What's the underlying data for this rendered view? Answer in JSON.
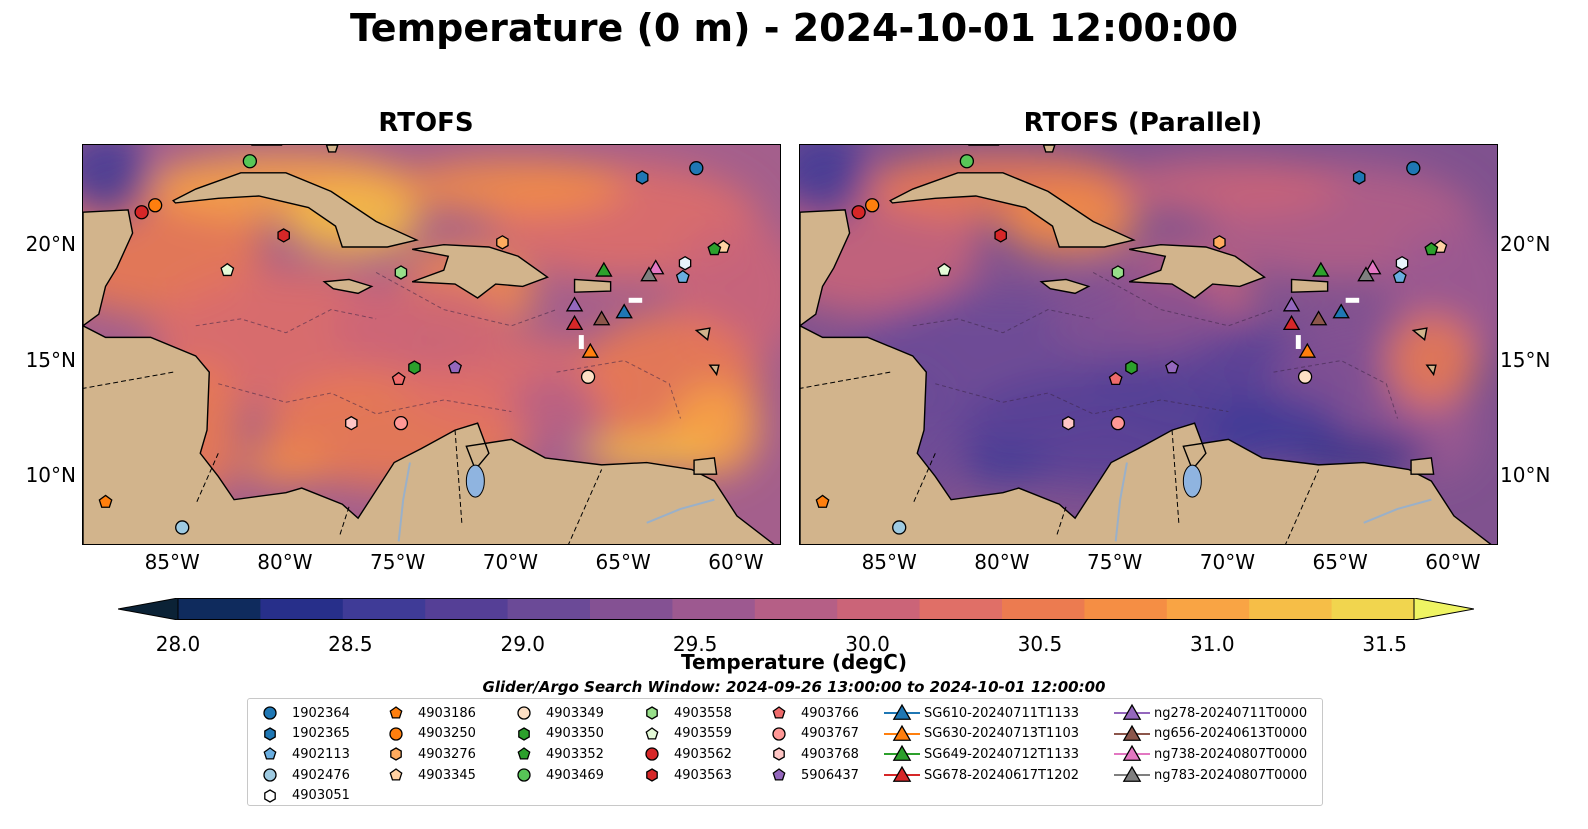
{
  "title": "Temperature (0 m) - 2024-10-01 12:00:00",
  "panels": [
    {
      "title": "RTOFS"
    },
    {
      "title": "RTOFS (Parallel)"
    }
  ],
  "map_axes": {
    "lat_labels": [
      "20°N",
      "15°N",
      "10°N"
    ],
    "lon_labels": [
      "85°W",
      "80°W",
      "75°W",
      "70°W",
      "65°W",
      "60°W"
    ]
  },
  "colorbar": {
    "label": "Temperature (degC)",
    "ticks": [
      "28.0",
      "28.5",
      "29.0",
      "29.5",
      "30.0",
      "30.5",
      "31.0",
      "31.5"
    ],
    "colors": [
      "#0b2236",
      "#0f2b5d",
      "#272f8a",
      "#3f3b97",
      "#553f96",
      "#6b4a97",
      "#845193",
      "#9d5990",
      "#b55f86",
      "#cb6478",
      "#e06f67",
      "#ec7b50",
      "#f58e44",
      "#f9a444",
      "#f6be47",
      "#f1d54e",
      "#eff463"
    ]
  },
  "legend": {
    "title": "Glider/Argo Search Window: 2024-09-26 13:00:00 to 2024-10-01 12:00:00",
    "columns": [
      [
        {
          "label": "1902364",
          "marker": "circle",
          "color": "#1f77b4"
        },
        {
          "label": "1902365",
          "marker": "hexagon",
          "color": "#1f77b4"
        },
        {
          "label": "4902113",
          "marker": "pentagon",
          "color": "#6aaee0"
        },
        {
          "label": "4902476",
          "marker": "circle",
          "color": "#9ecae1"
        },
        {
          "label": "4903051",
          "marker": "hexagon",
          "color": "#ffffff"
        }
      ],
      [
        {
          "label": "4903186",
          "marker": "pentagon",
          "color": "#ff7f0e"
        },
        {
          "label": "4903250",
          "marker": "circle",
          "color": "#ff7f0e"
        },
        {
          "label": "4903276",
          "marker": "hexagon",
          "color": "#ffab5e"
        },
        {
          "label": "4903345",
          "marker": "pentagon",
          "color": "#ffd1a3"
        }
      ],
      [
        {
          "label": "4903349",
          "marker": "circle",
          "color": "#fde0c5"
        },
        {
          "label": "4903350",
          "marker": "hexagon",
          "color": "#2ca02c"
        },
        {
          "label": "4903352",
          "marker": "pentagon",
          "color": "#2ca02c"
        },
        {
          "label": "4903469",
          "marker": "circle",
          "color": "#57c657"
        }
      ],
      [
        {
          "label": "4903558",
          "marker": "hexagon",
          "color": "#98df8a"
        },
        {
          "label": "4903559",
          "marker": "pentagon",
          "color": "#e5fbd8"
        },
        {
          "label": "4903562",
          "marker": "circle",
          "color": "#d62728"
        },
        {
          "label": "4903563",
          "marker": "hexagon",
          "color": "#d62728"
        }
      ],
      [
        {
          "label": "4903766",
          "marker": "pentagon",
          "color": "#ef6b6b"
        },
        {
          "label": "4903767",
          "marker": "circle",
          "color": "#ff9896"
        },
        {
          "label": "4903768",
          "marker": "hexagon",
          "color": "#ffc6c5"
        },
        {
          "label": "5906437",
          "marker": "pentagon",
          "color": "#9467bd"
        }
      ],
      [
        {
          "label": "SG610-20240711T1133",
          "marker": "triangle-line",
          "color": "#1f77b4"
        },
        {
          "label": "SG630-20240713T1103",
          "marker": "triangle-line",
          "color": "#ff7f0e"
        },
        {
          "label": "SG649-20240712T1133",
          "marker": "triangle-line",
          "color": "#2ca02c"
        },
        {
          "label": "SG678-20240617T1202",
          "marker": "triangle-line",
          "color": "#d62728"
        }
      ],
      [
        {
          "label": "ng278-20240711T0000",
          "marker": "triangle-line",
          "color": "#9467bd"
        },
        {
          "label": "ng656-20240613T0000",
          "marker": "triangle-line",
          "color": "#8c564b"
        },
        {
          "label": "ng738-20240807T0000",
          "marker": "triangle-line",
          "color": "#e377c2"
        },
        {
          "label": "ng783-20240807T0000",
          "marker": "triangle-line",
          "color": "#7f7f7f"
        }
      ]
    ]
  },
  "markers": [
    {
      "lon": -61.8,
      "lat": 23.3,
      "marker": "circle",
      "color": "#1f77b4"
    },
    {
      "lon": -64.2,
      "lat": 22.9,
      "marker": "hexagon",
      "color": "#1f77b4"
    },
    {
      "lon": -88.0,
      "lat": 8.9,
      "marker": "pentagon",
      "color": "#ff7f0e"
    },
    {
      "lon": -85.8,
      "lat": 21.7,
      "marker": "circle",
      "color": "#ff7f0e"
    },
    {
      "lon": -70.4,
      "lat": 20.1,
      "marker": "hexagon",
      "color": "#ffab5e"
    },
    {
      "lon": -60.6,
      "lat": 19.9,
      "marker": "pentagon",
      "color": "#ffd1a3"
    },
    {
      "lon": -66.6,
      "lat": 14.3,
      "marker": "circle",
      "color": "#fde0c5"
    },
    {
      "lon": -74.3,
      "lat": 14.7,
      "marker": "hexagon",
      "color": "#2ca02c"
    },
    {
      "lon": -61.0,
      "lat": 19.8,
      "marker": "pentagon",
      "color": "#2ca02c"
    },
    {
      "lon": -81.6,
      "lat": 23.6,
      "marker": "circle",
      "color": "#57c657"
    },
    {
      "lon": -74.9,
      "lat": 18.8,
      "marker": "hexagon",
      "color": "#98df8a"
    },
    {
      "lon": -82.6,
      "lat": 18.9,
      "marker": "pentagon",
      "color": "#e5fbd8"
    },
    {
      "lon": -86.4,
      "lat": 21.4,
      "marker": "circle",
      "color": "#d62728"
    },
    {
      "lon": -80.1,
      "lat": 20.4,
      "marker": "hexagon",
      "color": "#d62728"
    },
    {
      "lon": -75.0,
      "lat": 14.2,
      "marker": "pentagon",
      "color": "#ef6b6b"
    },
    {
      "lon": -74.9,
      "lat": 12.3,
      "marker": "circle",
      "color": "#ff9896"
    },
    {
      "lon": -77.1,
      "lat": 12.3,
      "marker": "hexagon",
      "color": "#ffc6c5"
    },
    {
      "lon": -72.5,
      "lat": 14.7,
      "marker": "pentagon",
      "color": "#9467bd"
    },
    {
      "lon": -84.6,
      "lat": 7.8,
      "marker": "circle",
      "color": "#9ecae1"
    },
    {
      "lon": -62.3,
      "lat": 19.2,
      "marker": "hexagon",
      "color": "#e8f4fb"
    },
    {
      "lon": -62.4,
      "lat": 18.6,
      "marker": "pentagon",
      "color": "#6aaee0"
    },
    {
      "lon": -65.0,
      "lat": 17.1,
      "marker": "triangle",
      "color": "#1f77b4"
    },
    {
      "lon": -66.5,
      "lat": 15.4,
      "marker": "triangle",
      "color": "#ff7f0e"
    },
    {
      "lon": -65.9,
      "lat": 18.9,
      "marker": "triangle",
      "color": "#2ca02c"
    },
    {
      "lon": -67.2,
      "lat": 16.6,
      "marker": "triangle",
      "color": "#d62728"
    },
    {
      "lon": -67.2,
      "lat": 17.4,
      "marker": "triangle",
      "color": "#9467bd"
    },
    {
      "lon": -66.0,
      "lat": 16.8,
      "marker": "triangle",
      "color": "#8c564b"
    },
    {
      "lon": -63.6,
      "lat": 19.0,
      "marker": "triangle",
      "color": "#e377c2"
    },
    {
      "lon": -63.9,
      "lat": 18.7,
      "marker": "triangle",
      "color": "#7f7f7f"
    }
  ]
}
